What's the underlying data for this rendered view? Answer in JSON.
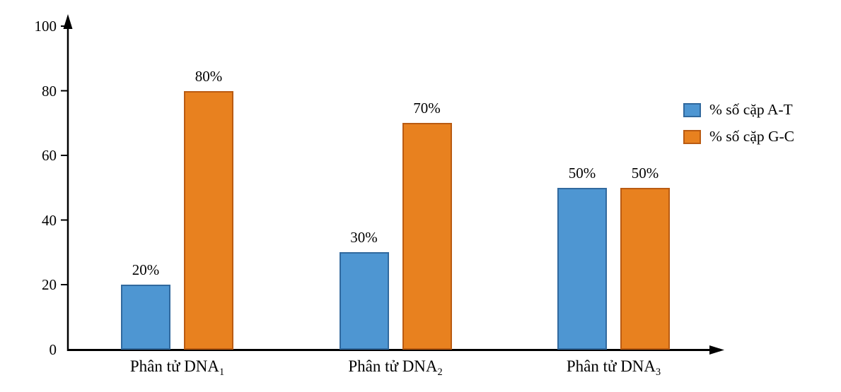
{
  "chart_data": {
    "type": "bar",
    "categories": [
      {
        "text": "Phân tử DNA",
        "sub": "1"
      },
      {
        "text": "Phân tử DNA",
        "sub": "2"
      },
      {
        "text": "Phân tử DNA",
        "sub": "3"
      }
    ],
    "series": [
      {
        "name": "% số cặp A-T",
        "fill": "#4E96D2",
        "border": "#31699E",
        "values": [
          20,
          30,
          50
        ]
      },
      {
        "name": "% số cặp G-C",
        "fill": "#E8811F",
        "border": "#BA5B12",
        "values": [
          80,
          70,
          50
        ]
      }
    ],
    "value_label_suffix": "%",
    "title": "",
    "xlabel": "",
    "ylabel": "",
    "y_ticks": [
      0,
      20,
      40,
      60,
      80,
      100
    ],
    "ylim": [
      0,
      100
    ],
    "grid": false,
    "legend_position": "right",
    "axis_color": "#000000"
  }
}
